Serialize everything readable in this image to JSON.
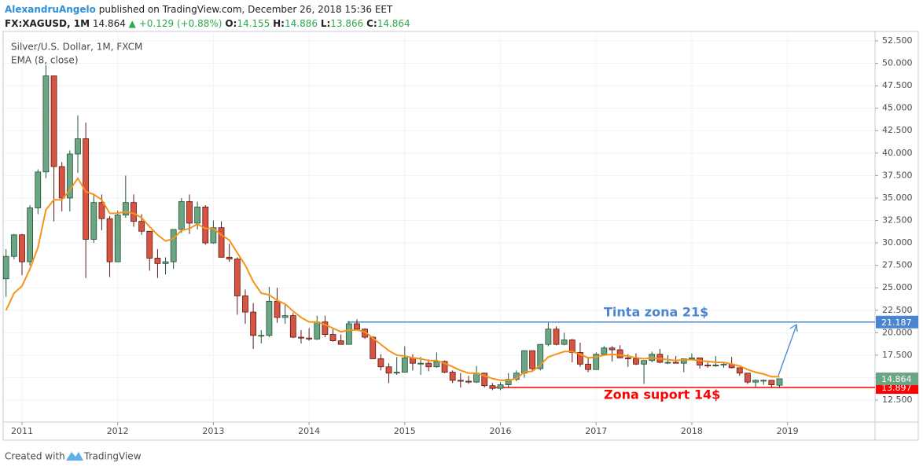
{
  "header": {
    "author": "AlexandruAngelo",
    "published": "published on TradingView.com, December 26, 2018 15:36 EET",
    "symbol": "FX:XAGUSD, 1M",
    "last": "14.864",
    "change": "▲ +0.129 (+0.88%)",
    "ohlc": [
      {
        "label": "O:",
        "value": "14.155"
      },
      {
        "label": "H:",
        "value": "14.886"
      },
      {
        "label": "L:",
        "value": "13.866"
      },
      {
        "label": "C:",
        "value": "14.864"
      }
    ]
  },
  "footer": {
    "text": "Created with",
    "brand": "TradingView"
  },
  "chart_data": {
    "type": "candlestick",
    "title": "Silver/U.S. Dollar, 1M, FXCM",
    "up_color": "#6ba583",
    "down_color": "#d75442",
    "up_border": "#225437",
    "down_border": "#5b1a13",
    "grid": true,
    "xlim": [
      2010.77,
      2019.915
    ],
    "xticks": [
      2011,
      2012,
      2013,
      2014,
      2015,
      2016,
      2017,
      2018,
      2019
    ],
    "ylim": [
      10.05,
      53.55
    ],
    "yticks": [
      {
        "value": 12.5,
        "label": "12.500"
      },
      {
        "value": 15,
        "label": "15.000"
      },
      {
        "value": 17.5,
        "label": "17.500"
      },
      {
        "value": 20,
        "label": "20.000"
      },
      {
        "value": 22.5,
        "label": "22.500"
      },
      {
        "value": 25,
        "label": "25.000"
      },
      {
        "value": 27.5,
        "label": "27.500"
      },
      {
        "value": 30,
        "label": "30.000"
      },
      {
        "value": 32.5,
        "label": "32.500"
      },
      {
        "value": 35,
        "label": "35.000"
      },
      {
        "value": 37.5,
        "label": "37.500"
      },
      {
        "value": 40,
        "label": "40.000"
      },
      {
        "value": 42.5,
        "label": "42.500"
      },
      {
        "value": 45,
        "label": "45.000"
      },
      {
        "value": 47.5,
        "label": "47.500"
      },
      {
        "value": 50,
        "label": "50.000"
      },
      {
        "value": 52.5,
        "label": "52.500"
      }
    ],
    "x": [
      2010.8333,
      2010.9167,
      2011,
      2011.0833,
      2011.1667,
      2011.25,
      2011.3333,
      2011.4167,
      2011.5,
      2011.5833,
      2011.6667,
      2011.75,
      2011.8333,
      2011.9167,
      2012,
      2012.0833,
      2012.1667,
      2012.25,
      2012.3333,
      2012.4167,
      2012.5,
      2012.5833,
      2012.6667,
      2012.75,
      2012.8333,
      2012.9167,
      2013,
      2013.0833,
      2013.1667,
      2013.25,
      2013.3333,
      2013.4167,
      2013.5,
      2013.5833,
      2013.6667,
      2013.75,
      2013.8333,
      2013.9167,
      2014,
      2014.0833,
      2014.1667,
      2014.25,
      2014.3333,
      2014.4167,
      2014.5,
      2014.5833,
      2014.6667,
      2014.75,
      2014.8333,
      2014.9167,
      2015,
      2015.0833,
      2015.1667,
      2015.25,
      2015.3333,
      2015.4167,
      2015.5,
      2015.5833,
      2015.6667,
      2015.75,
      2015.8333,
      2015.9167,
      2016,
      2016.0833,
      2016.1667,
      2016.25,
      2016.3333,
      2016.4167,
      2016.5,
      2016.5833,
      2016.6667,
      2016.75,
      2016.8333,
      2016.9167,
      2017,
      2017.0833,
      2017.1667,
      2017.25,
      2017.3333,
      2017.4167,
      2017.5,
      2017.5833,
      2017.6667,
      2017.75,
      2017.8333,
      2017.9167,
      2018,
      2018.0833,
      2018.1667,
      2018.25,
      2018.3333,
      2018.4167,
      2018.5,
      2018.5833,
      2018.6667,
      2018.75,
      2018.8333,
      2018.9167
    ],
    "open": [
      26.0,
      28.5,
      30.9,
      27.9,
      33.9,
      37.9,
      48.6,
      38.5,
      35.0,
      39.9,
      41.6,
      30.4,
      34.5,
      32.7,
      27.9,
      33.1,
      34.5,
      32.4,
      31.3,
      28.3,
      27.7,
      27.9,
      31.5,
      34.6,
      32.2,
      34.0,
      30.0,
      31.7,
      28.4,
      28.2,
      24.1,
      22.3,
      19.7,
      19.7,
      23.5,
      21.7,
      21.9,
      19.5,
      19.4,
      19.3,
      21.2,
      19.8,
      19.1,
      18.7,
      21.0,
      20.4,
      19.5,
      17.1,
      16.2,
      15.5,
      15.6,
      17.2,
      16.6,
      16.6,
      16.2,
      16.8,
      15.6,
      14.7,
      14.6,
      14.5,
      15.5,
      14.1,
      13.8,
      14.2,
      14.8,
      15.5,
      18.0,
      16.0,
      18.7,
      20.4,
      18.7,
      19.2,
      17.8,
      16.5,
      15.9,
      17.6,
      18.3,
      18.1,
      17.2,
      17.1,
      16.5,
      16.9,
      17.6,
      16.7,
      16.7,
      16.6,
      17.1,
      17.2,
      16.4,
      16.3,
      16.4,
      16.5,
      16.1,
      15.5,
      14.5,
      14.7,
      14.7,
      14.155
    ],
    "high": [
      29.3,
      31.0,
      31.0,
      34.2,
      38.2,
      49.8,
      48.6,
      39.0,
      40.3,
      44.2,
      43.4,
      35.3,
      35.4,
      33.0,
      33.6,
      37.5,
      35.4,
      33.2,
      31.3,
      29.3,
      28.4,
      31.5,
      35.0,
      35.4,
      34.6,
      34.2,
      32.5,
      32.4,
      29.9,
      28.4,
      24.8,
      23.3,
      20.3,
      25.1,
      25.0,
      23.1,
      22.2,
      20.3,
      20.5,
      21.9,
      21.9,
      20.4,
      19.8,
      21.3,
      21.5,
      20.5,
      19.6,
      17.6,
      16.6,
      17.3,
      18.5,
      17.6,
      17.3,
      17.0,
      17.8,
      16.9,
      15.8,
      15.5,
      15.2,
      16.3,
      15.5,
      14.4,
      14.5,
      15.5,
      15.8,
      18.0,
      17.8,
      18.7,
      21.1,
      20.7,
      20.0,
      19.3,
      18.9,
      17.3,
      17.8,
      18.5,
      18.5,
      18.6,
      17.6,
      17.7,
      16.9,
      17.9,
      18.2,
      17.5,
      17.4,
      17.1,
      17.7,
      17.2,
      16.9,
      17.4,
      16.6,
      17.3,
      16.1,
      15.5,
      14.8,
      14.8,
      14.7,
      14.886
    ],
    "low": [
      24.0,
      28.2,
      26.4,
      27.5,
      33.2,
      37.2,
      32.4,
      33.5,
      33.5,
      37.8,
      26.1,
      30.0,
      31.4,
      26.2,
      27.9,
      32.8,
      31.8,
      30.9,
      26.9,
      26.1,
      26.5,
      27.1,
      31.1,
      31.0,
      31.5,
      29.8,
      29.9,
      28.4,
      27.9,
      22.0,
      21.0,
      18.2,
      18.8,
      19.5,
      21.1,
      21.0,
      19.4,
      18.8,
      19.1,
      19.2,
      19.5,
      19.0,
      18.7,
      18.7,
      20.3,
      19.3,
      17.1,
      15.8,
      14.4,
      15.3,
      15.6,
      15.8,
      15.3,
      15.7,
      16.1,
      15.5,
      14.4,
      13.9,
      14.3,
      14.4,
      13.9,
      13.6,
      13.6,
      13.9,
      14.6,
      15.0,
      15.8,
      15.8,
      18.5,
      18.6,
      18.6,
      16.7,
      16.2,
      15.6,
      15.9,
      17.5,
      16.8,
      17.2,
      16.2,
      16.4,
      14.3,
      16.7,
      16.6,
      16.5,
      16.6,
      15.6,
      17.0,
      16.0,
      16.1,
      16.2,
      16.1,
      16.0,
      15.2,
      14.3,
      13.9,
      14.2,
      13.9,
      13.866
    ],
    "close": [
      28.5,
      30.9,
      27.9,
      33.9,
      37.9,
      48.6,
      38.5,
      35.0,
      39.9,
      41.6,
      30.4,
      34.5,
      32.7,
      27.9,
      33.1,
      34.5,
      32.4,
      31.3,
      28.3,
      27.7,
      27.9,
      31.5,
      34.6,
      32.2,
      34.0,
      30.0,
      31.7,
      28.4,
      28.2,
      24.1,
      22.3,
      19.7,
      19.7,
      23.5,
      21.7,
      21.9,
      19.5,
      19.4,
      19.3,
      21.2,
      19.8,
      19.1,
      18.7,
      21.0,
      20.4,
      19.5,
      17.1,
      16.2,
      15.5,
      15.6,
      17.2,
      16.6,
      16.6,
      16.2,
      16.8,
      15.6,
      14.7,
      14.6,
      14.5,
      15.5,
      14.1,
      13.8,
      14.2,
      14.8,
      15.5,
      18.0,
      16.0,
      18.7,
      20.4,
      18.7,
      19.2,
      17.8,
      16.5,
      15.9,
      17.6,
      18.3,
      18.1,
      17.2,
      17.1,
      16.5,
      16.9,
      17.6,
      16.7,
      16.7,
      16.6,
      17.1,
      17.2,
      16.4,
      16.3,
      16.4,
      16.5,
      16.1,
      15.5,
      14.5,
      14.7,
      14.7,
      14.2,
      14.864
    ],
    "ema": {
      "name": "EMA (8, close)",
      "color": "#f7931a",
      "values": [
        22.5,
        24.4,
        25.2,
        27.1,
        29.5,
        33.7,
        34.8,
        34.8,
        35.9,
        37.2,
        35.7,
        35.4,
        34.8,
        33.3,
        33.3,
        33.5,
        33.3,
        32.8,
        31.8,
        30.9,
        30.2,
        30.5,
        31.4,
        31.6,
        32.1,
        31.6,
        31.6,
        30.9,
        30.3,
        28.9,
        27.5,
        25.7,
        24.4,
        24.2,
        23.6,
        23.2,
        22.4,
        21.7,
        21.2,
        21.2,
        20.9,
        20.5,
        20.1,
        20.3,
        20.3,
        20.1,
        19.4,
        18.7,
        18.0,
        17.5,
        17.4,
        17.2,
        17.1,
        16.9,
        16.9,
        16.6,
        16.2,
        15.8,
        15.5,
        15.5,
        15.2,
        14.9,
        14.7,
        14.7,
        14.9,
        15.6,
        15.7,
        16.4,
        17.3,
        17.6,
        17.9,
        17.9,
        17.6,
        17.2,
        17.3,
        17.5,
        17.6,
        17.5,
        17.4,
        17.2,
        17.1,
        17.2,
        17.1,
        17.0,
        16.9,
        17.0,
        17.0,
        16.9,
        16.8,
        16.7,
        16.7,
        16.5,
        16.3,
        15.9,
        15.6,
        15.4,
        15.1,
        15.1
      ]
    },
    "levels": [
      {
        "value": 21.187,
        "x_start": 2014.4,
        "color": "#4a86d0",
        "text": "Tinta zona 21$"
      },
      {
        "value": 13.897,
        "x_start": 2015.9,
        "color": "#ff0000",
        "text": "Zona suport 14$"
      }
    ]
  }
}
